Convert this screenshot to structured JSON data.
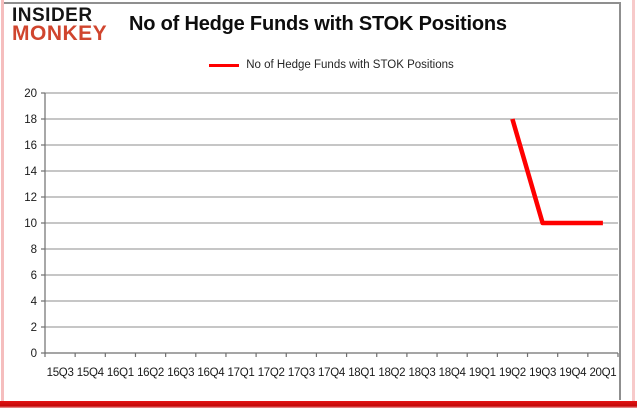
{
  "logo": {
    "line1": "INSIDER",
    "line2": "MONKEY"
  },
  "header": {
    "title": "No of Hedge Funds with STOK Positions"
  },
  "legend": {
    "label": "No of Hedge Funds with STOK Positions"
  },
  "colors": {
    "series": "#ff0000",
    "logo_black": "#141414",
    "logo_red": "#d0452e",
    "gridline": "#8e8e8e",
    "axis": "#6f6f6f",
    "tick_text": "#1a1a1a",
    "chart_border": "#8f8f8f",
    "frame_pink_left": "#f5bebe",
    "frame_pink_right": "#f7caca",
    "frame_red_bottom": "#e41414"
  },
  "chart_data": {
    "type": "line",
    "title": "No of Hedge Funds with STOK Positions",
    "categories": [
      "15Q3",
      "15Q4",
      "16Q1",
      "16Q2",
      "16Q3",
      "16Q4",
      "17Q1",
      "17Q2",
      "17Q3",
      "17Q4",
      "18Q1",
      "18Q2",
      "18Q3",
      "18Q4",
      "19Q1",
      "19Q2",
      "19Q3",
      "19Q4",
      "20Q1"
    ],
    "series": [
      {
        "name": "No of Hedge Funds with STOK Positions",
        "values": [
          null,
          null,
          null,
          null,
          null,
          null,
          null,
          null,
          null,
          null,
          null,
          null,
          null,
          null,
          null,
          18,
          10,
          10,
          10
        ]
      }
    ],
    "xlabel": "",
    "ylabel": "",
    "ylim": [
      0,
      20
    ],
    "ytick_step": 2,
    "yticks": [
      0,
      2,
      4,
      6,
      8,
      10,
      12,
      14,
      16,
      18,
      20
    ],
    "grid": true,
    "legend_position": "top-center"
  }
}
